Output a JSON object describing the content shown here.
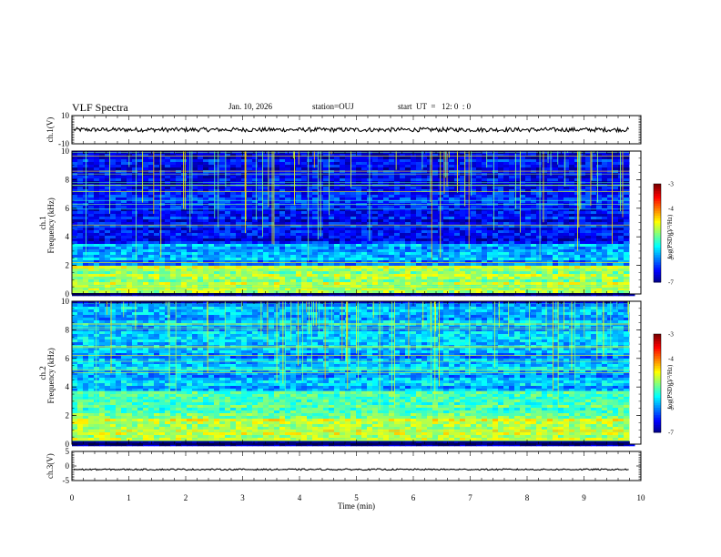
{
  "header": {
    "title": "VLF Spectra",
    "date": "Jan. 10, 2026",
    "station": "station=OUJ",
    "start": "start  UT  =   12: 0  : 0"
  },
  "chart_data": {
    "type": "heatmap",
    "title": "VLF Spectra",
    "xlabel": "Time  (min)",
    "xlim": [
      0,
      10
    ],
    "x_ticks": [
      "0",
      "1",
      "2",
      "3",
      "4",
      "5",
      "6",
      "7",
      "8",
      "9",
      "10"
    ],
    "data_end_min": 9.8,
    "panels": [
      {
        "name": "ch1-waveform",
        "type": "line",
        "ylabel": "ch.1(V)",
        "ylim": [
          -10,
          10
        ],
        "y_ticks": [
          "10",
          "-10"
        ],
        "signal_level": 0,
        "noise_amplitude": 1.5
      },
      {
        "name": "ch1-spectrogram",
        "type": "heatmap",
        "ylabel_line1": "ch.1",
        "ylabel_line2": "Frequency  (kHz)",
        "ylim": [
          0,
          10
        ],
        "y_ticks": [
          "0",
          "2",
          "4",
          "6",
          "8",
          "10"
        ],
        "bands": [
          {
            "from": 0.2,
            "to": 2.1,
            "level": 0.55
          },
          {
            "from": 2.1,
            "to": 3.6,
            "level": 0.28
          },
          {
            "from": 3.6,
            "to": 10,
            "level": 0.12
          }
        ],
        "colorbar": {
          "label": "log(PSD)(V²/Hz)",
          "ticks": [
            "-3",
            "-4",
            "-5",
            "-6",
            "-7"
          ],
          "range": [
            -7,
            -3
          ]
        }
      },
      {
        "name": "ch2-spectrogram",
        "type": "heatmap",
        "ylabel_line1": "ch.2",
        "ylabel_line2": "Frequency  (kHz)",
        "ylim": [
          0,
          10
        ],
        "y_ticks": [
          "0",
          "2",
          "4",
          "6",
          "8",
          "10"
        ],
        "bands": [
          {
            "from": 0.3,
            "to": 2.0,
            "level": 0.55
          },
          {
            "from": 2.0,
            "to": 3.8,
            "level": 0.45
          },
          {
            "from": 3.8,
            "to": 10,
            "level": 0.3
          }
        ],
        "colorbar": {
          "label": "log(PSD)(V²/Hz)",
          "ticks": [
            "-3",
            "-4",
            "-5",
            "-6",
            "-7"
          ],
          "range": [
            -7,
            -3
          ]
        }
      },
      {
        "name": "ch3-waveform",
        "type": "line",
        "ylabel": "ch.3(V)",
        "ylim": [
          -5,
          5
        ],
        "y_ticks": [
          "5",
          "0",
          "-5"
        ],
        "signal_level": -1.2,
        "noise_amplitude": 0.25
      }
    ]
  }
}
